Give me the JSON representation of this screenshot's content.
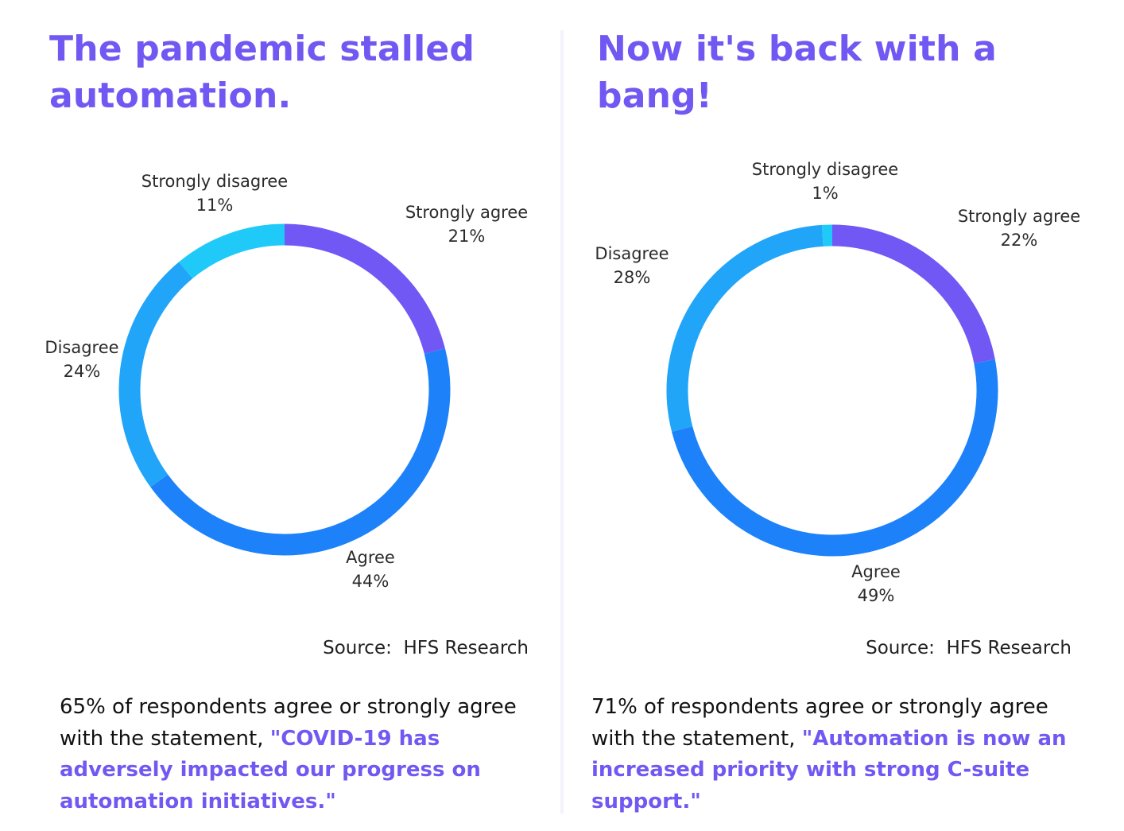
{
  "panels": [
    {
      "title": "The pandemic stalled automation.",
      "source": "Source:  HFS Research",
      "caption_plain": "65% of respondents agree or strongly agree with the statement, ",
      "caption_quote": "\"COVID-19 has adversely impacted our progress on automation initiatives.\""
    },
    {
      "title": "Now it's back with a bang!",
      "source": "Source:  HFS Research",
      "caption_plain": "71% of respondents agree or strongly agree with the statement, ",
      "caption_quote": "\"Automation is now an increased priority with strong C-suite support.\""
    }
  ],
  "colors": {
    "strongly_agree": "#7158f5",
    "agree": "#1d82f9",
    "disagree": "#21a5f9",
    "strongly_disagree": "#1fcaf9"
  },
  "chart_data": [
    {
      "type": "pie",
      "style": "donut",
      "start_angle": "top",
      "direction": "clockwise",
      "labels": [
        "Strongly agree",
        "Agree",
        "Disagree",
        "Strongly disagree"
      ],
      "values": [
        21,
        44,
        24,
        11
      ],
      "value_labels": [
        "21%",
        "44%",
        "24%",
        "11%"
      ],
      "colors": [
        "#7158f5",
        "#1d82f9",
        "#21a5f9",
        "#1fcaf9"
      ]
    },
    {
      "type": "pie",
      "style": "donut",
      "start_angle": "top",
      "direction": "clockwise",
      "labels": [
        "Strongly agree",
        "Agree",
        "Disagree",
        "Strongly disagree"
      ],
      "values": [
        22,
        49,
        28,
        1
      ],
      "value_labels": [
        "22%",
        "49%",
        "28%",
        "1%"
      ],
      "colors": [
        "#7158f5",
        "#1d82f9",
        "#21a5f9",
        "#1fcaf9"
      ]
    }
  ]
}
